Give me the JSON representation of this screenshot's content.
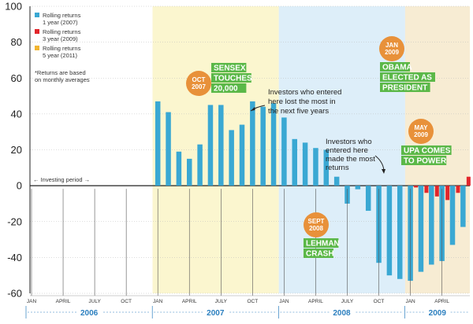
{
  "chart_data": {
    "type": "bar",
    "title": "",
    "xlabel": "",
    "ylabel": "",
    "ylim": [
      -60,
      100
    ],
    "yticks": [
      100,
      80,
      60,
      40,
      20,
      0,
      -20,
      -40,
      -60
    ],
    "months": [
      "2006-01",
      "2006-02",
      "2006-03",
      "2006-04",
      "2006-05",
      "2006-06",
      "2006-07",
      "2006-08",
      "2006-09",
      "2006-10",
      "2006-11",
      "2006-12",
      "2007-01",
      "2007-02",
      "2007-03",
      "2007-04",
      "2007-05",
      "2007-06",
      "2007-07",
      "2007-08",
      "2007-09",
      "2007-10",
      "2007-11",
      "2007-12",
      "2008-01",
      "2008-02",
      "2008-03",
      "2008-04",
      "2008-05",
      "2008-06",
      "2008-07",
      "2008-08",
      "2008-09",
      "2008-10",
      "2008-11",
      "2008-12",
      "2009-01",
      "2009-02",
      "2009-03",
      "2009-04",
      "2009-05",
      "2009-06"
    ],
    "month_tick_labels": [
      {
        "index": 0,
        "label": "JAN"
      },
      {
        "index": 3,
        "label": "APRIL"
      },
      {
        "index": 6,
        "label": "JULY"
      },
      {
        "index": 9,
        "label": "OCT"
      },
      {
        "index": 12,
        "label": "JAN"
      },
      {
        "index": 15,
        "label": "APRIL"
      },
      {
        "index": 18,
        "label": "JULY"
      },
      {
        "index": 21,
        "label": "OCT"
      },
      {
        "index": 24,
        "label": "JAN"
      },
      {
        "index": 27,
        "label": "APRIL"
      },
      {
        "index": 30,
        "label": "JULY"
      },
      {
        "index": 33,
        "label": "OCT"
      },
      {
        "index": 36,
        "label": "JAN"
      },
      {
        "index": 39,
        "label": "APRIL"
      }
    ],
    "years": [
      {
        "label": "2006",
        "start": 0,
        "end": 12
      },
      {
        "label": "2007",
        "start": 12,
        "end": 24
      },
      {
        "label": "2008",
        "start": 24,
        "end": 36
      },
      {
        "label": "2009",
        "start": 36,
        "end": 42
      }
    ],
    "series": [
      {
        "name": "Rolling returns 1 year (2007)",
        "color": "#3aa8d3",
        "values": [
          {
            "i": 12,
            "v": 47
          },
          {
            "i": 13,
            "v": 41
          },
          {
            "i": 14,
            "v": 19
          },
          {
            "i": 15,
            "v": 15
          },
          {
            "i": 16,
            "v": 23
          },
          {
            "i": 17,
            "v": 45
          },
          {
            "i": 18,
            "v": 45
          },
          {
            "i": 19,
            "v": 31
          },
          {
            "i": 20,
            "v": 34
          },
          {
            "i": 21,
            "v": 47
          },
          {
            "i": 22,
            "v": 44
          },
          {
            "i": 23,
            "v": 46
          },
          {
            "i": 24,
            "v": 38
          },
          {
            "i": 25,
            "v": 26
          },
          {
            "i": 26,
            "v": 24
          },
          {
            "i": 27,
            "v": 21
          },
          {
            "i": 28,
            "v": 20
          },
          {
            "i": 29,
            "v": 5
          },
          {
            "i": 30,
            "v": -10
          },
          {
            "i": 31,
            "v": -2
          },
          {
            "i": 32,
            "v": -14
          },
          {
            "i": 33,
            "v": -43
          },
          {
            "i": 34,
            "v": -50
          },
          {
            "i": 35,
            "v": -52
          },
          {
            "i": 36,
            "v": -53
          },
          {
            "i": 37,
            "v": -48
          },
          {
            "i": 38,
            "v": -44
          },
          {
            "i": 39,
            "v": -42
          },
          {
            "i": 40,
            "v": -33
          },
          {
            "i": 41,
            "v": -23
          }
        ]
      },
      {
        "name": "Rolling returns 3 year (2009)",
        "color": "#e2262b",
        "values": [
          {
            "i": 36,
            "v": -1
          },
          {
            "i": 37,
            "v": -4
          },
          {
            "i": 38,
            "v": -6
          },
          {
            "i": 39,
            "v": -8
          },
          {
            "i": 40,
            "v": -4
          },
          {
            "i": 41,
            "v": 5
          }
        ]
      },
      {
        "name": "Rolling returns 5 year (2011)",
        "color": "#f2b531",
        "values": []
      }
    ],
    "legend": [
      {
        "line1": "Rolling returns",
        "line2": "1 year (2007)",
        "color": "#3aa8d3"
      },
      {
        "line1": "Rolling returns",
        "line2": "3 year (2009)",
        "color": "#e2262b"
      },
      {
        "line1": "Rolling returns",
        "line2": "5 year (2011)",
        "color": "#f2b531"
      }
    ],
    "legend_note": [
      "*Returns are based",
      "on monthly averages"
    ],
    "investing_period_label": "← Investing period →",
    "annotations": {
      "loss_note": [
        "Investors who entered",
        "here lost the most in",
        "the next five years"
      ],
      "gain_note": [
        "Investors who",
        "entered here",
        "made the most",
        "returns"
      ],
      "events": [
        {
          "badge": [
            "OCT",
            "2007"
          ],
          "headline": [
            "SENSEX",
            "TOUCHES",
            "20,000"
          ]
        },
        {
          "badge": [
            "SEPT",
            "2008"
          ],
          "headline": [
            "LEHMAN",
            "CRASH"
          ]
        },
        {
          "badge": [
            "JAN",
            "2009"
          ],
          "headline": [
            "OBAMA",
            "ELECTED AS",
            "PRESIDENT"
          ]
        },
        {
          "badge": [
            "MAY",
            "2009"
          ],
          "headline": [
            "UPA COMES",
            "TO POWER"
          ]
        }
      ]
    },
    "colors": {
      "band_yellow": "#fbf6cf",
      "band_blue": "#ddeef9",
      "band_tan": "#f7ecd3",
      "badge_orange": "#e8913a",
      "headline_green": "#5bb848",
      "axis": "#222222",
      "year_blue": "#2b7fbf"
    }
  }
}
